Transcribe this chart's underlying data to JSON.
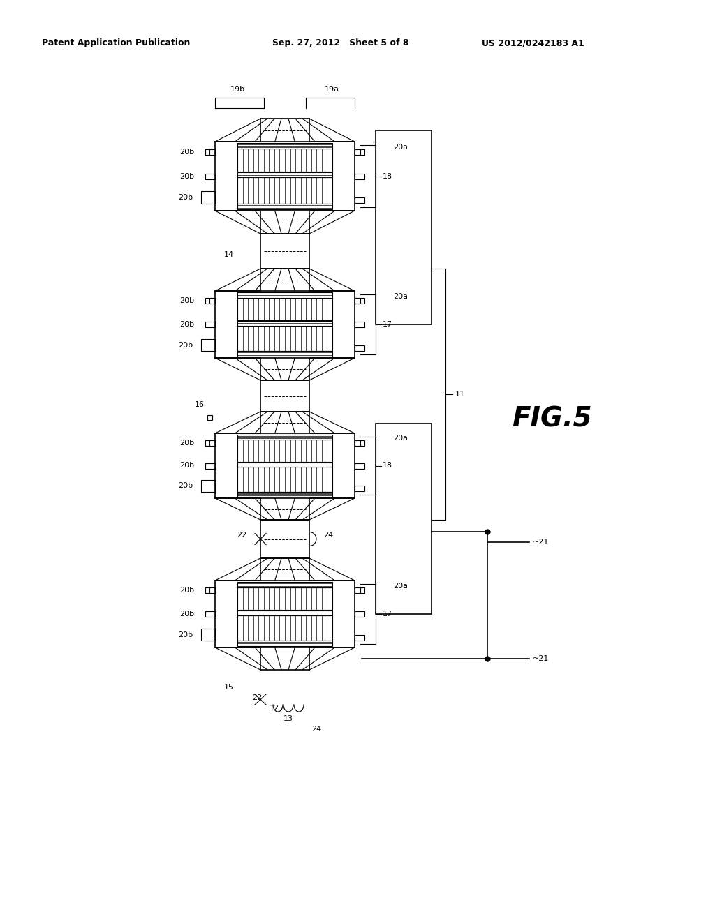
{
  "bg_color": "#ffffff",
  "title_left": "Patent Application Publication",
  "title_center": "Sep. 27, 2012   Sheet 5 of 8",
  "title_right": "US 2012/0242183 A1",
  "fig_label": "FIG.5",
  "header_fontsize": 9,
  "label_fontsize": 8
}
